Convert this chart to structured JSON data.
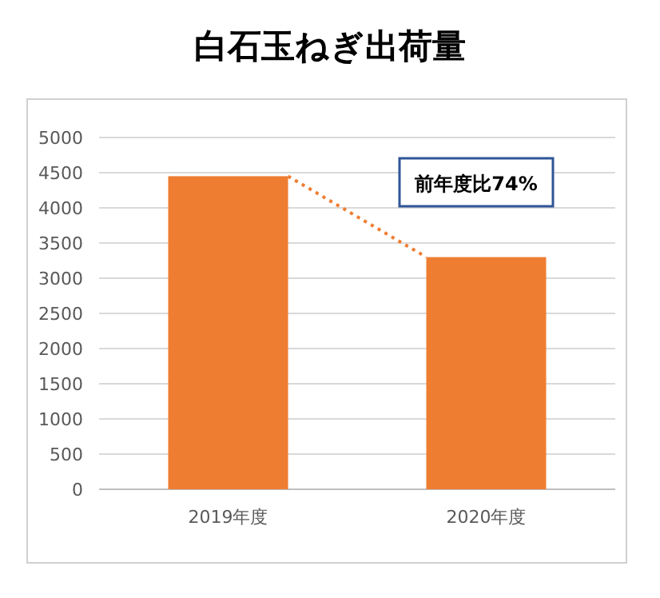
{
  "chart_data": {
    "type": "bar",
    "title": "白石玉ねぎ出荷量",
    "categories": [
      "2019年度",
      "2020年度"
    ],
    "values": [
      4450,
      3300
    ],
    "color": "#ee7d31",
    "ylim": [
      0,
      5000
    ],
    "yticks": [
      0,
      500,
      1000,
      1500,
      2000,
      2500,
      3000,
      3500,
      4000,
      4500,
      5000
    ],
    "grid": "y",
    "annotations": [
      "前年度比74%"
    ]
  }
}
